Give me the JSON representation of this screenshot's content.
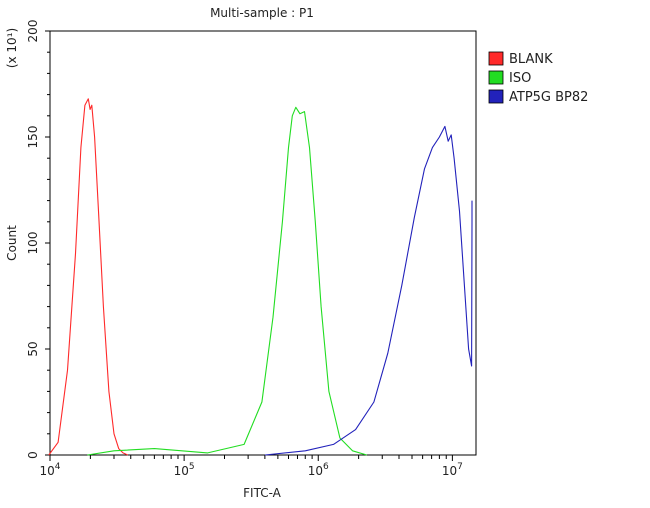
{
  "chart_data": {
    "type": "line",
    "title": "Multi-sample : P1",
    "xlabel": "FITC-A",
    "ylabel": "Count",
    "y_multiplier_label": "(x 10¹)",
    "x_scale": "log",
    "xlim": [
      10000,
      15000000
    ],
    "x_decades": [
      {
        "value": 10000,
        "base": "10",
        "exp": "4"
      },
      {
        "value": 100000,
        "base": "10",
        "exp": "5"
      },
      {
        "value": 1000000,
        "base": "10",
        "exp": "6"
      },
      {
        "value": 10000000,
        "base": "10",
        "exp": "7"
      }
    ],
    "ylim": [
      0,
      200
    ],
    "y_ticks": [
      0,
      50,
      100,
      150,
      200
    ],
    "grid": false,
    "legend_position": "right",
    "series": [
      {
        "name": "BLANK",
        "color": "#ff2a2a",
        "x": [
          9800,
          11500,
          13500,
          15500,
          17000,
          18200,
          19300,
          19900,
          20500,
          21500,
          23000,
          25000,
          27500,
          30000,
          32500,
          35000,
          38000
        ],
        "y": [
          0,
          6,
          40,
          95,
          145,
          165,
          168,
          163,
          165,
          150,
          115,
          70,
          30,
          10,
          3,
          1,
          0
        ]
      },
      {
        "name": "ISO",
        "color": "#22dd22",
        "x": [
          19000,
          30000,
          60000,
          150000,
          280000,
          380000,
          460000,
          540000,
          600000,
          640000,
          680000,
          730000,
          790000,
          860000,
          950000,
          1050000,
          1200000,
          1450000,
          1800000,
          2300000
        ],
        "y": [
          0,
          2,
          3,
          1,
          5,
          25,
          65,
          110,
          145,
          160,
          164,
          161,
          162,
          145,
          110,
          70,
          30,
          8,
          2,
          0
        ]
      },
      {
        "name": "ATP5G BP82",
        "color": "#2222bb",
        "x": [
          400000,
          800000,
          1300000,
          1900000,
          2600000,
          3300000,
          4200000,
          5200000,
          6200000,
          7100000,
          8000000,
          8800000,
          9300000,
          9800000,
          10300000,
          11300000,
          12300000,
          13200000,
          13900000,
          14000000,
          14000000
        ],
        "y": [
          0,
          2,
          5,
          12,
          25,
          48,
          80,
          112,
          135,
          145,
          150,
          155,
          148,
          151,
          140,
          115,
          80,
          50,
          42,
          110,
          120
        ]
      }
    ]
  }
}
